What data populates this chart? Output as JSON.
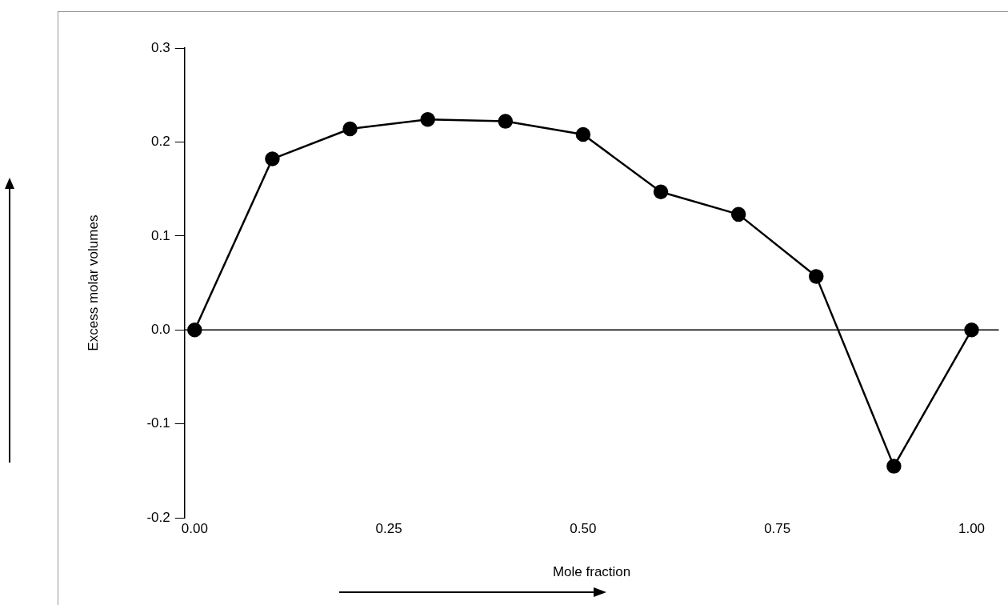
{
  "chart_data": {
    "type": "line",
    "xlabel": "Mole fraction",
    "ylabel": "Excess molar volumes",
    "x": [
      0,
      0.1,
      0.2,
      0.3,
      0.4,
      0.5,
      0.6,
      0.7,
      0.8,
      0.9,
      1.0
    ],
    "series": [
      {
        "color": "#000000",
        "values": [
          0,
          0.182,
          0.214,
          0.224,
          0.222,
          0.208,
          0.147,
          0.123,
          0.057,
          -0.145,
          0
        ]
      }
    ],
    "xlim": [
      -0.013,
      1.035
    ],
    "xticks": [
      {
        "value": 0,
        "label": "0.00"
      },
      {
        "value": 0.25,
        "label": "0.25"
      },
      {
        "value": 0.5,
        "label": "0.50"
      },
      {
        "value": 0.75,
        "label": "0.75"
      },
      {
        "value": 1,
        "label": "1.00"
      }
    ],
    "ylim": [
      -0.2,
      0.3
    ],
    "yticks": [
      {
        "value": -0.2,
        "label": "-0.2"
      },
      {
        "value": -0.1,
        "label": "-0.1"
      },
      {
        "value": 0,
        "label": "0.0"
      },
      {
        "value": 0.1,
        "label": "0.1"
      },
      {
        "value": 0.2,
        "label": "0.2"
      },
      {
        "value": 0.3,
        "label": "0.3"
      }
    ],
    "ref_lines": [
      {
        "axis": "y",
        "value": 0,
        "color": "#000000"
      }
    ],
    "grid": false,
    "legend": false,
    "marker": "circle",
    "line_style": "solid"
  }
}
